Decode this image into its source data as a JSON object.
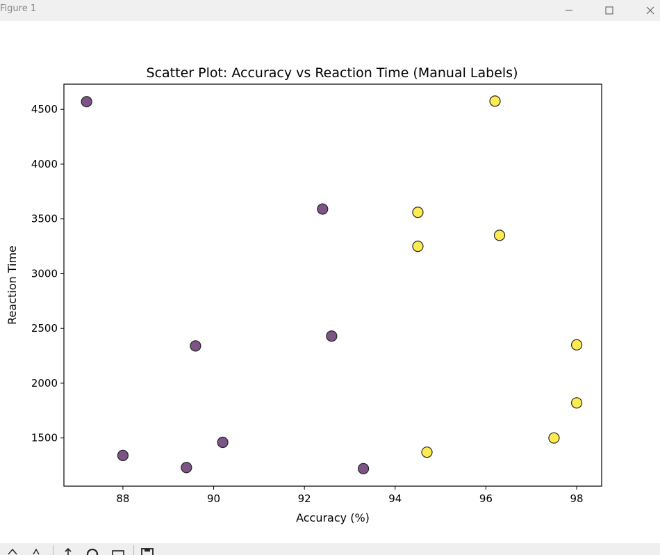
{
  "window": {
    "title": "Figure 1"
  },
  "titlebar_buttons": [
    {
      "name": "minimize-button",
      "icon": "minimize-icon"
    },
    {
      "name": "maximize-button",
      "icon": "maximize-icon"
    },
    {
      "name": "close-button",
      "icon": "close-icon"
    }
  ],
  "toolbar": {
    "tools": [
      "home-icon",
      "back-icon",
      "forward-icon",
      "pan-icon",
      "zoom-icon",
      "configure-subplots-icon",
      "save-icon"
    ]
  },
  "colors": {
    "class_0": "#5b2a68",
    "class_1": "#fde725",
    "edge": "#222222"
  },
  "chart_data": {
    "type": "scatter",
    "title": "Scatter Plot: Accuracy vs Reaction Time (Manual Labels)",
    "xlabel": "Accuracy (%)",
    "ylabel": "Reaction Time",
    "xlim": [
      86.7,
      98.55
    ],
    "ylim": [
      1060,
      4730
    ],
    "xticks": [
      88,
      90,
      92,
      94,
      96,
      98
    ],
    "yticks": [
      1500,
      2000,
      2500,
      3000,
      3500,
      4000,
      4500
    ],
    "grid": false,
    "legend": "none",
    "series": [
      {
        "color": "#5b2a68",
        "points": [
          {
            "x": 87.2,
            "y": 4570
          },
          {
            "x": 92.4,
            "y": 3590
          },
          {
            "x": 92.6,
            "y": 2430
          },
          {
            "x": 89.6,
            "y": 2340
          },
          {
            "x": 90.2,
            "y": 1460
          },
          {
            "x": 88.0,
            "y": 1340
          },
          {
            "x": 89.4,
            "y": 1230
          },
          {
            "x": 93.3,
            "y": 1220
          }
        ]
      },
      {
        "color": "#fde725",
        "points": [
          {
            "x": 96.2,
            "y": 4575
          },
          {
            "x": 94.5,
            "y": 3560
          },
          {
            "x": 96.3,
            "y": 3350
          },
          {
            "x": 94.5,
            "y": 3250
          },
          {
            "x": 98.0,
            "y": 2350
          },
          {
            "x": 98.0,
            "y": 1820
          },
          {
            "x": 97.5,
            "y": 1500
          },
          {
            "x": 94.7,
            "y": 1370
          }
        ]
      }
    ]
  }
}
